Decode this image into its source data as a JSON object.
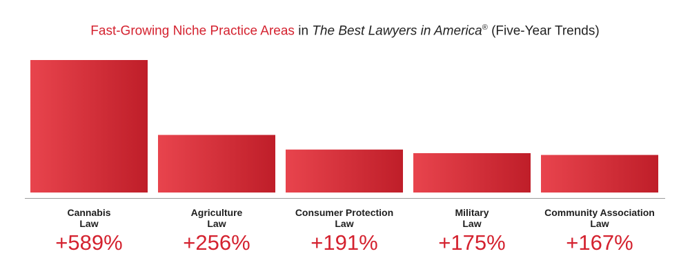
{
  "chart_data": {
    "type": "bar",
    "title_parts": {
      "red": "Fast-Growing Niche Practice Areas",
      "plain1": " in ",
      "italic": "The Best Lawyers in America",
      "sup": "®",
      "plain2": " (Five-Year Trends)"
    },
    "categories": [
      [
        "Cannabis",
        "Law"
      ],
      [
        "Agriculture",
        "Law"
      ],
      [
        "Consumer Protection",
        "Law"
      ],
      [
        "Military",
        "Law"
      ],
      [
        "Community Association",
        "Law"
      ]
    ],
    "values": [
      589,
      256,
      191,
      175,
      167
    ],
    "value_labels": [
      "+589%",
      "+256%",
      "+191%",
      "+175%",
      "+167%"
    ],
    "grid": false,
    "bar_gradient": [
      "#e8444d",
      "#bf1e29"
    ],
    "accent_color": "#d4222f"
  }
}
